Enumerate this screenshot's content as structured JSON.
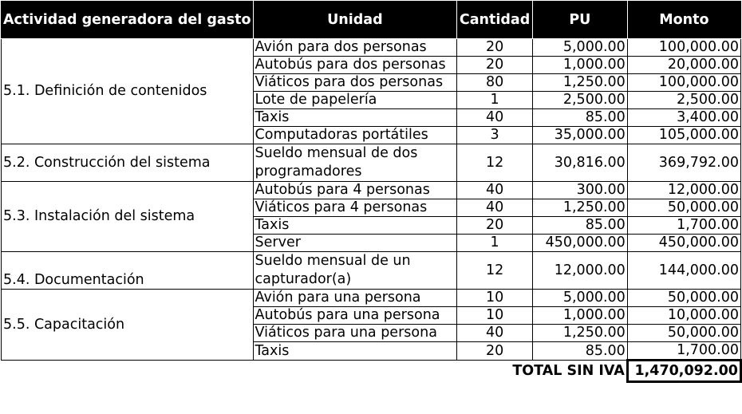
{
  "headers": {
    "activity": "Actividad generadora del gasto",
    "unit": "Unidad",
    "quantity": "Cantidad",
    "pu": "PU",
    "amount": "Monto"
  },
  "groups": [
    {
      "activity": "5.1. Definición de contenidos",
      "rows": [
        {
          "unit": "Avión para dos personas",
          "qty": "20",
          "pu": "5,000.00",
          "amount": "100,000.00"
        },
        {
          "unit": "Autobús para dos personas",
          "qty": "20",
          "pu": "1,000.00",
          "amount": "20,000.00"
        },
        {
          "unit": "Viáticos para dos personas",
          "qty": "80",
          "pu": "1,250.00",
          "amount": "100,000.00"
        },
        {
          "unit": "Lote de papelería",
          "qty": "1",
          "pu": "2,500.00",
          "amount": "2,500.00"
        },
        {
          "unit": "Taxis",
          "qty": "40",
          "pu": "85.00",
          "amount": "3,400.00"
        },
        {
          "unit": "Computadoras portátiles",
          "qty": "3",
          "pu": "35,000.00",
          "amount": "105,000.00"
        }
      ]
    },
    {
      "activity": "5.2. Construcción del sistema",
      "rows": [
        {
          "unit": "Sueldo mensual de dos programadores",
          "qty": "12",
          "pu": "30,816.00",
          "amount": "369,792.00"
        }
      ]
    },
    {
      "activity": "5.3. Instalación del sistema",
      "rows": [
        {
          "unit": "Autobús para 4 personas",
          "qty": "40",
          "pu": "300.00",
          "amount": "12,000.00"
        },
        {
          "unit": "Viáticos para 4 personas",
          "qty": "40",
          "pu": "1,250.00",
          "amount": "50,000.00"
        },
        {
          "unit": "Taxis",
          "qty": "20",
          "pu": "85.00",
          "amount": "1,700.00"
        },
        {
          "unit": "Server",
          "qty": "1",
          "pu": "450,000.00",
          "amount": "450,000.00"
        }
      ]
    },
    {
      "activity": "5.4. Documentación",
      "rows": [
        {
          "unit": "Sueldo mensual de un capturador(a)",
          "qty": "12",
          "pu": "12,000.00",
          "amount": "144,000.00"
        }
      ]
    },
    {
      "activity": "5.5. Capacitación",
      "rows": [
        {
          "unit": "Avión para una persona",
          "qty": "10",
          "pu": "5,000.00",
          "amount": "50,000.00"
        },
        {
          "unit": "Autobús para una persona",
          "qty": "10",
          "pu": "1,000.00",
          "amount": "10,000.00"
        },
        {
          "unit": "Viáticos para una persona",
          "qty": "40",
          "pu": "1,250.00",
          "amount": "50,000.00"
        },
        {
          "unit": "Taxis",
          "qty": "20",
          "pu": "85.00",
          "amount": "1,700.00"
        }
      ]
    }
  ],
  "total": {
    "label": "TOTAL SIN IVA",
    "value": "1,470,092.00"
  }
}
